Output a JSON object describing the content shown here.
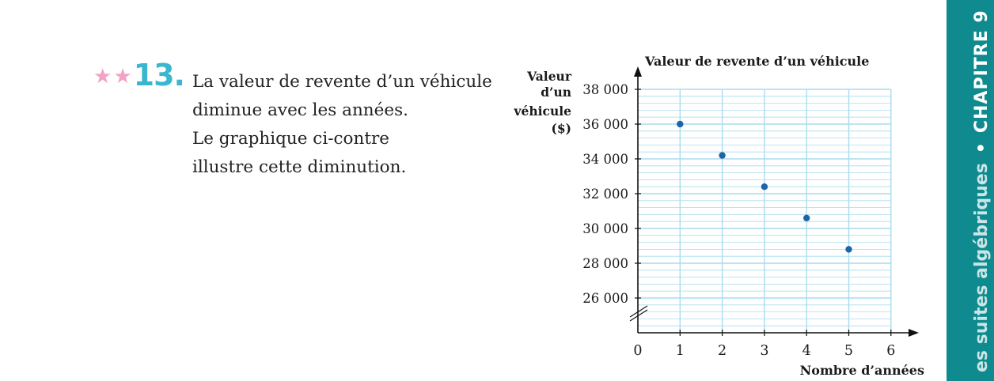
{
  "exercise": {
    "stars": [
      "★",
      "★"
    ],
    "number": "13.",
    "lines": [
      "La valeur de revente d’un véhicule",
      "diminue avec les années.",
      "Le graphique ci-contre",
      "illustre cette diminution."
    ]
  },
  "chart_data": {
    "type": "scatter",
    "title": "Valeur de revente d’un véhicule",
    "ylabel_lines": [
      "Valeur",
      "d’un",
      "véhicule",
      "($)"
    ],
    "xlabel": "Nombre d’années",
    "x_ticks": [
      "0",
      "1",
      "2",
      "3",
      "4",
      "5",
      "6"
    ],
    "y_ticks": [
      "26 000",
      "28 000",
      "30 000",
      "32 000",
      "34 000",
      "36 000",
      "38 000"
    ],
    "xlim": [
      0,
      6
    ],
    "ylim": [
      26000,
      38000
    ],
    "axis_break": true,
    "grid": true,
    "points": [
      {
        "x": 1,
        "y": 36000
      },
      {
        "x": 2,
        "y": 34200
      },
      {
        "x": 3,
        "y": 32400
      },
      {
        "x": 4,
        "y": 30600
      },
      {
        "x": 5,
        "y": 28800
      }
    ],
    "colors": {
      "grid": "#a8dcee",
      "point": "#1f64a6",
      "axis": "#111111"
    }
  },
  "side_tab": {
    "topic": "es suites algébriques",
    "separator": "•",
    "chapter": "CHAPITRE 9"
  }
}
